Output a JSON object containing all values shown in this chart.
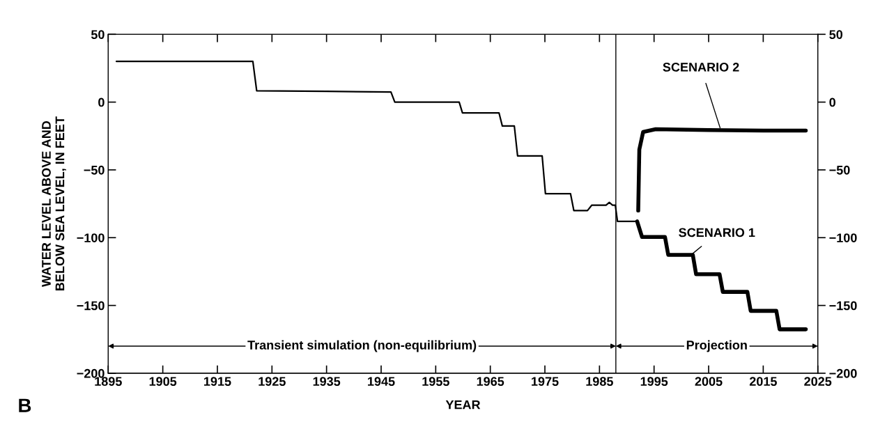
{
  "chart_data": {
    "type": "line",
    "xlabel": "YEAR",
    "ylabel": "WATER LEVEL ABOVE AND\nBELOW SEA LEVEL, IN FEET",
    "xlim": [
      1895,
      2025
    ],
    "xticks": [
      1895,
      1905,
      1915,
      1925,
      1935,
      1945,
      1955,
      1965,
      1975,
      1985,
      1995,
      2005,
      2015,
      2025
    ],
    "ylim": [
      -200,
      50
    ],
    "yticks": [
      -200,
      -150,
      -100,
      -50,
      0,
      50
    ],
    "y2lim": [
      -200,
      50
    ],
    "y2ticks": [
      -200,
      -150,
      -100,
      -50,
      0,
      50
    ],
    "grid": false,
    "legend": false,
    "marker": "none",
    "line_style": "solid",
    "series": [
      {
        "color": "#000000",
        "x": [
          1896.5,
          1921.5,
          1922.2,
          1935,
          1946.8,
          1947.5,
          1959.3,
          1959.9,
          1966.6,
          1967.2,
          1969.4,
          1970.0,
          1974.5,
          1975.1,
          1979.7,
          1980.3,
          1982.8,
          1983.6,
          1986.2,
          1986.8,
          1987.4,
          1987.9,
          1988.3,
          1991.9
        ],
        "values": [
          30,
          30,
          8.3,
          8,
          7.4,
          0,
          0,
          -8,
          -8,
          -17.6,
          -17.6,
          -39.7,
          -39.7,
          -67.6,
          -67.6,
          -80,
          -80,
          -76,
          -76,
          -74,
          -76,
          -76,
          -88,
          -88
        ]
      },
      {
        "name": "SCENARIO 1",
        "color": "#000000",
        "x": [
          1991.9,
          1992.8,
          1997.0,
          1997.6,
          2002.1,
          2002.7,
          2007.0,
          2007.6,
          2012.1,
          2012.7,
          2017.4,
          2018.0,
          2022.8
        ],
        "values": [
          -88,
          -99.5,
          -99.5,
          -112.7,
          -112.7,
          -127,
          -127,
          -140,
          -140,
          -154,
          -154,
          -167.6,
          -167.6
        ]
      },
      {
        "name": "SCENARIO 2",
        "color": "#000000",
        "x": [
          1992.1,
          1992.3,
          1993.0,
          1995.3,
          2005,
          2015,
          2022.8
        ],
        "values": [
          -80,
          -35,
          -22,
          -20,
          -20.6,
          -21,
          -21
        ]
      }
    ],
    "ref_lines": [
      {
        "axis": "x",
        "value": 1988,
        "color": "#000000"
      }
    ],
    "annotations": [
      "Transient simulation (non-equilibrium)",
      "Projection",
      "B"
    ]
  }
}
